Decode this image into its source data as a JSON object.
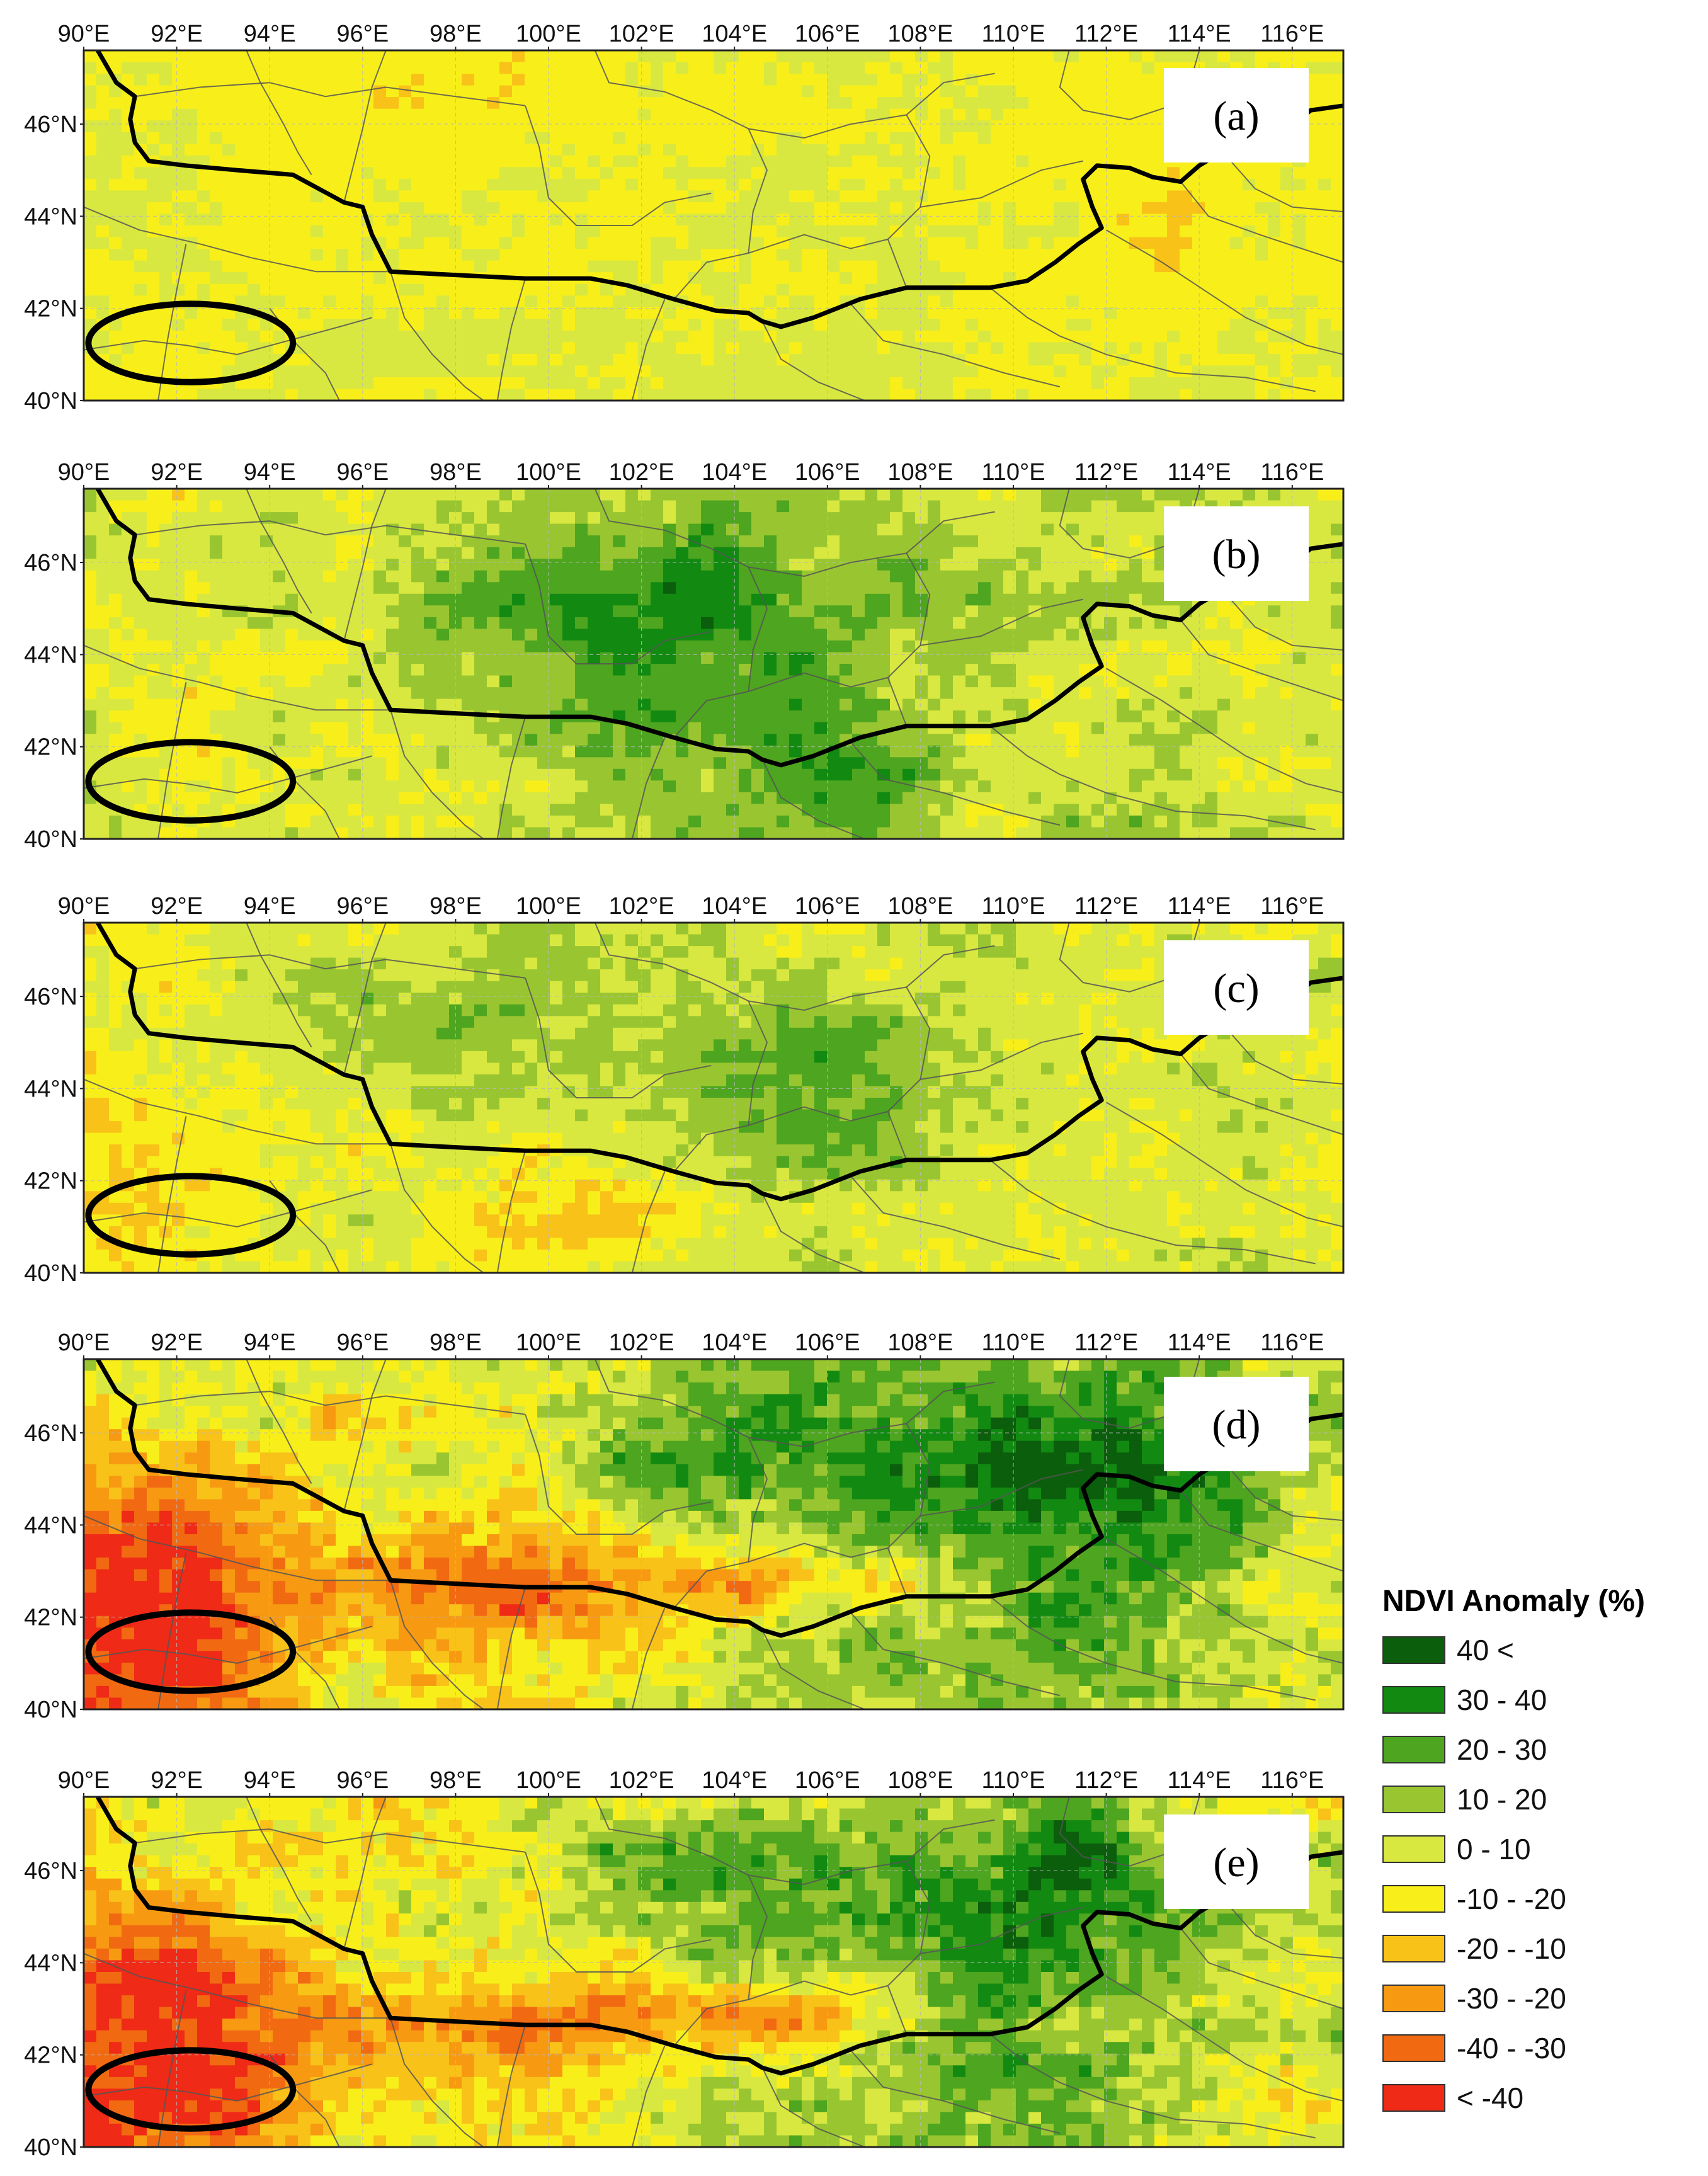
{
  "figure": {
    "x_axis_labels": [
      "90°E",
      "92°E",
      "94°E",
      "96°E",
      "98°E",
      "100°E",
      "102°E",
      "104°E",
      "106°E",
      "108°E",
      "110°E",
      "112°E",
      "114°E",
      "116°E"
    ],
    "y_axis_labels": [
      "46°N",
      "44°N",
      "42°N",
      "40°N"
    ],
    "panels": [
      {
        "label": "(a)",
        "theme": "orange"
      },
      {
        "label": "(b)",
        "theme": "green"
      },
      {
        "label": "(c)",
        "theme": "mixed"
      },
      {
        "label": "(d)",
        "theme": "redgreen"
      },
      {
        "label": "(e)",
        "theme": "redgreen"
      }
    ],
    "legend": {
      "title": "NDVI Anomaly (%)",
      "classes": [
        {
          "label": "40 <",
          "color": "#0b5e0b"
        },
        {
          "label": "30 - 40",
          "color": "#128a12"
        },
        {
          "label": "20 - 30",
          "color": "#4ea51f"
        },
        {
          "label": "10 - 20",
          "color": "#99c630"
        },
        {
          "label": "0 - 10",
          "color": "#d8e840"
        },
        {
          "label": "-10 - -20",
          "color": "#f8ef1a"
        },
        {
          "label": "-20 - -10",
          "color": "#f8c219"
        },
        {
          "label": "-30 - -20",
          "color": "#f79a12"
        },
        {
          "label": "-40 - -30",
          "color": "#f16a12"
        },
        {
          "label": "< -40",
          "color": "#ef2a16"
        }
      ]
    },
    "colors": {
      "border": "#000000",
      "province_lines": "#555555",
      "grid": "#b8b8b8",
      "highlight_ellipse": "#000000"
    }
  }
}
